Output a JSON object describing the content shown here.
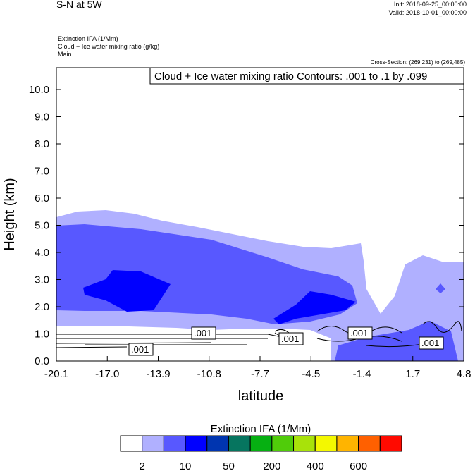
{
  "header": {
    "title": "S-N at 5W",
    "init": "Init: 2018-09-25_00:00:00",
    "valid": "Valid: 2018-10-01_00:00:00",
    "field1": "Extinction IFA   (1/Mm)",
    "field2": "Cloud + Ice water mixing ratio   (g/kg)",
    "field3": "Main",
    "cross_section": "Cross-Section: (269,231) to (269,485)"
  },
  "chart_data": {
    "type": "heatmap",
    "title": "S-N at 5W",
    "xlabel": "latitude",
    "ylabel": "Height (km)",
    "xticks": [
      "-20.1",
      "-17.0",
      "-13.9",
      "-10.8",
      "-7.7",
      "-4.5",
      "-1.4",
      "1.7",
      "4.8"
    ],
    "yticks": [
      "0.0",
      "1.0",
      "2.0",
      "3.0",
      "4.0",
      "5.0",
      "6.0",
      "7.0",
      "8.0",
      "9.0",
      "10.0"
    ],
    "xlim": [
      -20.1,
      4.8
    ],
    "ylim": [
      0,
      10.8
    ],
    "contour_legend": "Cloud + Ice water mixing ratio Contours: .001 to .1 by .099",
    "contour_labels": [
      ".001",
      ".001",
      ".001",
      ".001",
      ".001"
    ],
    "colorbar": {
      "title": "Extinction IFA  (1/Mm)",
      "colors": [
        "#ffffff",
        "#b0b0ff",
        "#5858ff",
        "#0000ff",
        "#0035b0",
        "#06755f",
        "#06b012",
        "#50cc0a",
        "#a8e20a",
        "#f4f800",
        "#ffb400",
        "#ff6000",
        "#ff0a00"
      ],
      "labels": [
        "2",
        "10",
        "50",
        "200",
        "400",
        "600"
      ]
    }
  }
}
